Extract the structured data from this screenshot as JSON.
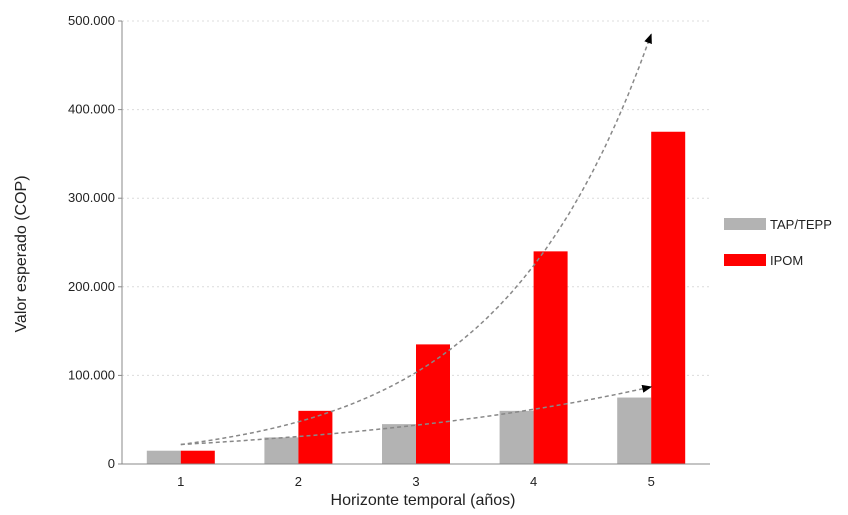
{
  "chart_data": {
    "type": "bar",
    "categories": [
      "1",
      "2",
      "3",
      "4",
      "5"
    ],
    "series": [
      {
        "name": "TAP/TEPP",
        "values": [
          15000,
          30000,
          45000,
          60000,
          75000
        ],
        "color": "#b3b3b3"
      },
      {
        "name": "IPOM",
        "values": [
          15000,
          60000,
          135000,
          240000,
          375000
        ],
        "color": "#ff0000"
      }
    ],
    "xlabel": "Horizonte temporal (años)",
    "ylabel": "Valor esperado (COP)",
    "ylim": [
      0,
      500000
    ],
    "yticks": [
      {
        "value": 0,
        "label": "0"
      },
      {
        "value": 100000,
        "label": "100.000"
      },
      {
        "value": 200000,
        "label": "200.000"
      },
      {
        "value": 300000,
        "label": "300.000"
      },
      {
        "value": 400000,
        "label": "400.000"
      },
      {
        "value": 500000,
        "label": "500.000"
      }
    ],
    "grid": "dashed horizontal",
    "legend_position": "right",
    "trend_arrows": [
      {
        "series": "IPOM",
        "from": [
          1,
          22000
        ],
        "to": [
          5,
          485000
        ],
        "color": "#888888",
        "style": "dashed"
      },
      {
        "series": "TAP/TEPP",
        "from": [
          1,
          22000
        ],
        "to": [
          5,
          87000
        ],
        "color": "#888888",
        "style": "dashed"
      }
    ]
  }
}
